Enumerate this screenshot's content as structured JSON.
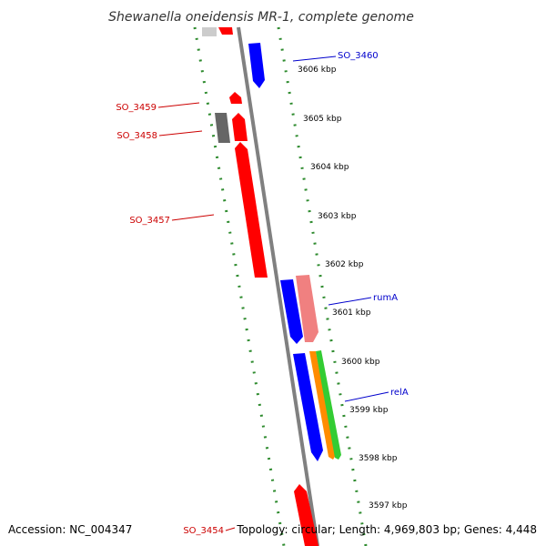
{
  "title": "Shewanella oneidensis MR-1, complete genome",
  "footer": {
    "accession": "Accession: NC_004347",
    "info": "Topology: circular; Length: 4,969,803 bp; Genes: 4,448"
  },
  "colors": {
    "backbone": "#808080",
    "tick": "#2e8b2e",
    "forward_label": "#0000cc",
    "reverse_label": "#cc0000"
  },
  "scale_labels": [
    "3606 kbp",
    "3605 kbp",
    "3604 kbp",
    "3603 kbp",
    "3602 kbp",
    "3601 kbp",
    "3600 kbp",
    "3599 kbp",
    "3598 kbp",
    "3597 kbp"
  ],
  "gene_labels": [
    {
      "text": "SO_3460",
      "strand": "forward"
    },
    {
      "text": "SO_3459",
      "strand": "reverse"
    },
    {
      "text": "SO_3458",
      "strand": "reverse"
    },
    {
      "text": "SO_3457",
      "strand": "reverse"
    },
    {
      "text": "rumA",
      "strand": "forward"
    },
    {
      "text": "relA",
      "strand": "forward"
    },
    {
      "text": "SO_3454",
      "strand": "reverse"
    }
  ],
  "features": [
    {
      "color": "#cccccc",
      "strand": "reverse"
    },
    {
      "color": "#ff0000",
      "strand": "reverse"
    },
    {
      "color": "#0000ff",
      "strand": "forward"
    },
    {
      "color": "#ff0000",
      "strand": "reverse"
    },
    {
      "color": "#666666",
      "strand": "reverse"
    },
    {
      "color": "#ff0000",
      "strand": "reverse"
    },
    {
      "color": "#ff0000",
      "strand": "reverse"
    },
    {
      "color": "#0000ff",
      "strand": "forward"
    },
    {
      "color": "#f08080",
      "strand": "forward"
    },
    {
      "color": "#0000ff",
      "strand": "forward"
    },
    {
      "color": "#ff8c00",
      "strand": "forward"
    },
    {
      "color": "#33cc33",
      "strand": "forward"
    },
    {
      "color": "#ff0000",
      "strand": "reverse"
    }
  ]
}
